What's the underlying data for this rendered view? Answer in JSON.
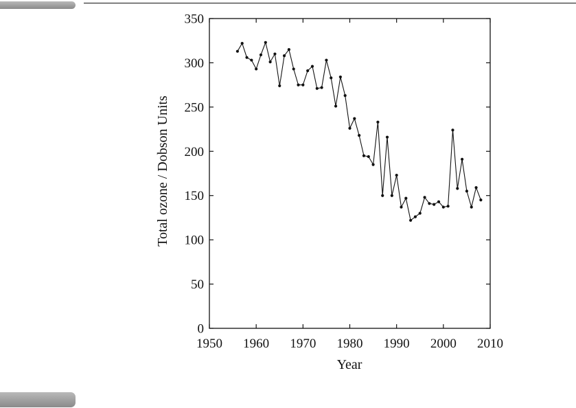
{
  "chart_data": {
    "type": "line",
    "xlabel": "Year",
    "ylabel": "Total ozone / Dobson Units",
    "xlim": [
      1950,
      2010
    ],
    "ylim": [
      0,
      350
    ],
    "xticks": [
      1950,
      1960,
      1970,
      1980,
      1990,
      2000,
      2010
    ],
    "yticks": [
      0,
      50,
      100,
      150,
      200,
      250,
      300,
      350
    ],
    "grid": false,
    "markers": true,
    "series": [
      {
        "x": [
          1956,
          1957,
          1958,
          1959,
          1960,
          1961,
          1962,
          1963,
          1964,
          1965,
          1966,
          1967,
          1968,
          1969,
          1970,
          1971,
          1972,
          1973,
          1974,
          1975,
          1976,
          1977,
          1978,
          1979,
          1980,
          1981,
          1982,
          1983,
          1984,
          1985,
          1986,
          1987,
          1988,
          1989,
          1990,
          1991,
          1992,
          1993,
          1994,
          1995,
          1996,
          1997,
          1998,
          1999,
          2000,
          2001,
          2002,
          2003,
          2004,
          2005,
          2006,
          2007,
          2008
        ],
        "values": [
          313,
          322,
          306,
          303,
          293,
          309,
          323,
          301,
          310,
          274,
          308,
          315,
          293,
          275,
          275,
          291,
          296,
          271,
          272,
          303,
          283,
          251,
          284,
          263,
          226,
          237,
          218,
          195,
          194,
          185,
          233,
          150,
          216,
          150,
          173,
          137,
          147,
          122,
          126,
          130,
          148,
          141,
          140,
          143,
          137,
          138,
          224,
          158,
          191,
          155,
          137,
          159,
          145
        ]
      }
    ]
  },
  "colors": {
    "line": "#111111",
    "marker": "#111111",
    "axis": "#111111",
    "tab": "#9a9a9a"
  }
}
